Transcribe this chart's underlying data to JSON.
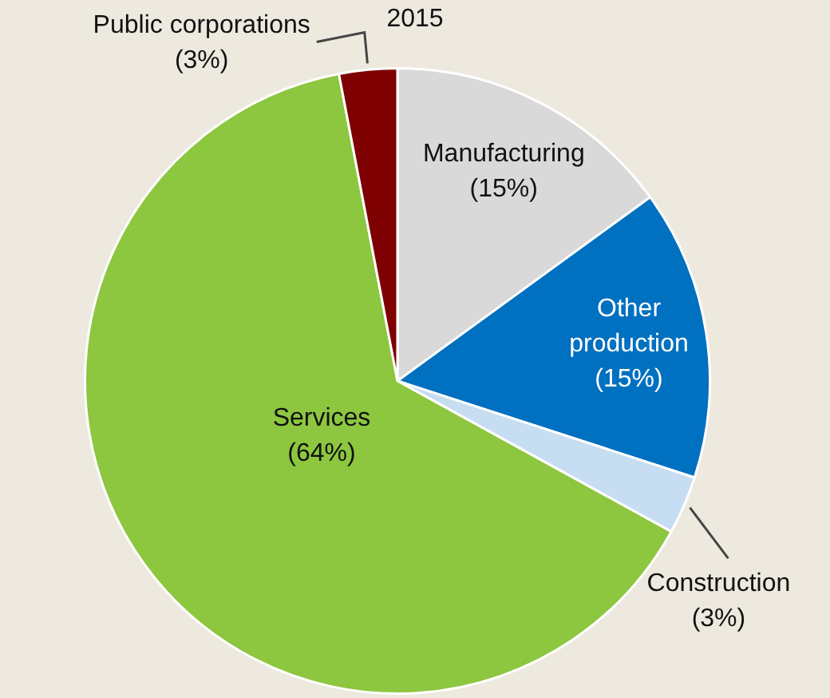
{
  "chart_data": {
    "type": "pie",
    "title": "2015",
    "categories": [
      "Manufacturing",
      "Other production",
      "Construction",
      "Services",
      "Public corporations"
    ],
    "values": [
      15,
      15,
      3,
      64,
      3
    ],
    "value_labels": [
      "(15%)",
      "(15%)",
      "(3%)",
      "(64%)",
      "(3%)"
    ],
    "colors": [
      "#d9d9d9",
      "#0070c0",
      "#c6ddf2",
      "#8dc63f",
      "#7f0000"
    ],
    "legend": false
  }
}
